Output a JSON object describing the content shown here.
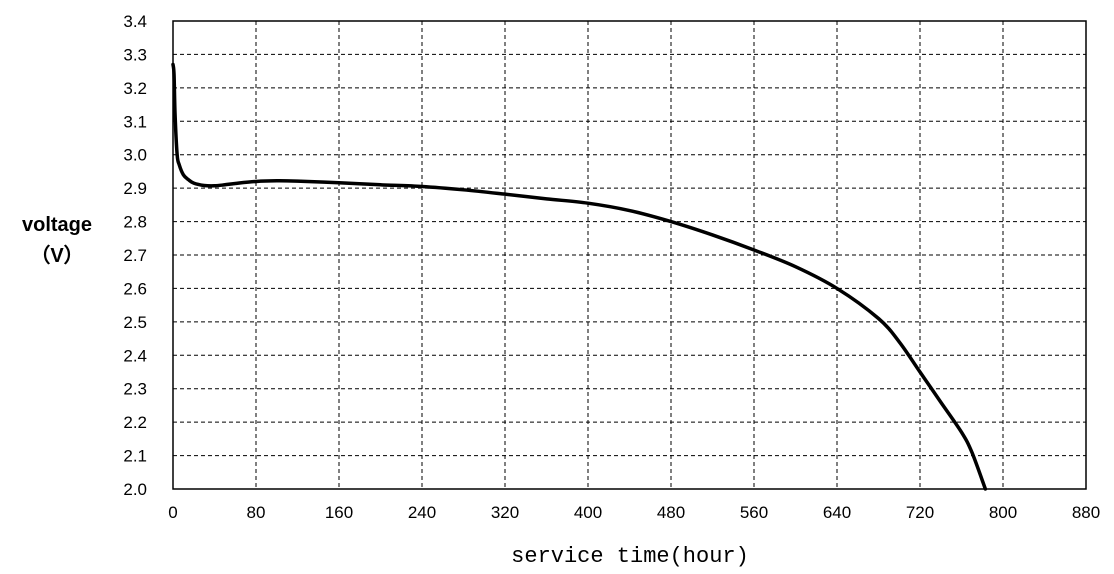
{
  "chart_data": {
    "type": "line",
    "title": "",
    "xlabel": "service time(hour)",
    "ylabel_line1": "voltage",
    "ylabel_line2": "（V）",
    "xlim": [
      0,
      880
    ],
    "ylim": [
      2.0,
      3.4
    ],
    "xticks": [
      0,
      80,
      160,
      240,
      320,
      400,
      480,
      560,
      640,
      720,
      800,
      880
    ],
    "yticks": [
      2.0,
      2.1,
      2.2,
      2.3,
      2.4,
      2.5,
      2.6,
      2.7,
      2.8,
      2.9,
      3.0,
      3.1,
      3.2,
      3.3,
      3.4
    ],
    "ytick_labels": [
      "2.0",
      "2.1",
      "2.2",
      "2.3",
      "2.4",
      "2.5",
      "2.6",
      "2.7",
      "2.8",
      "2.9",
      "3.0",
      "3.1",
      "3.2",
      "3.3",
      "3.4"
    ],
    "grid": true,
    "grid_style": "dashed",
    "line_color": "#000000",
    "series": [
      {
        "x": [
          0,
          1,
          2,
          4,
          6,
          10,
          15,
          20,
          30,
          40,
          50,
          60,
          80,
          100,
          120,
          160,
          200,
          240,
          280,
          320,
          360,
          400,
          440,
          480,
          520,
          560,
          600,
          640,
          680,
          700,
          720,
          740,
          760,
          770,
          783
        ],
        "y": [
          3.27,
          3.24,
          3.12,
          3.0,
          2.97,
          2.94,
          2.925,
          2.915,
          2.908,
          2.907,
          2.91,
          2.914,
          2.92,
          2.922,
          2.921,
          2.916,
          2.91,
          2.905,
          2.895,
          2.882,
          2.868,
          2.855,
          2.833,
          2.8,
          2.76,
          2.715,
          2.665,
          2.6,
          2.51,
          2.44,
          2.35,
          2.26,
          2.17,
          2.11,
          2.0
        ]
      }
    ]
  }
}
